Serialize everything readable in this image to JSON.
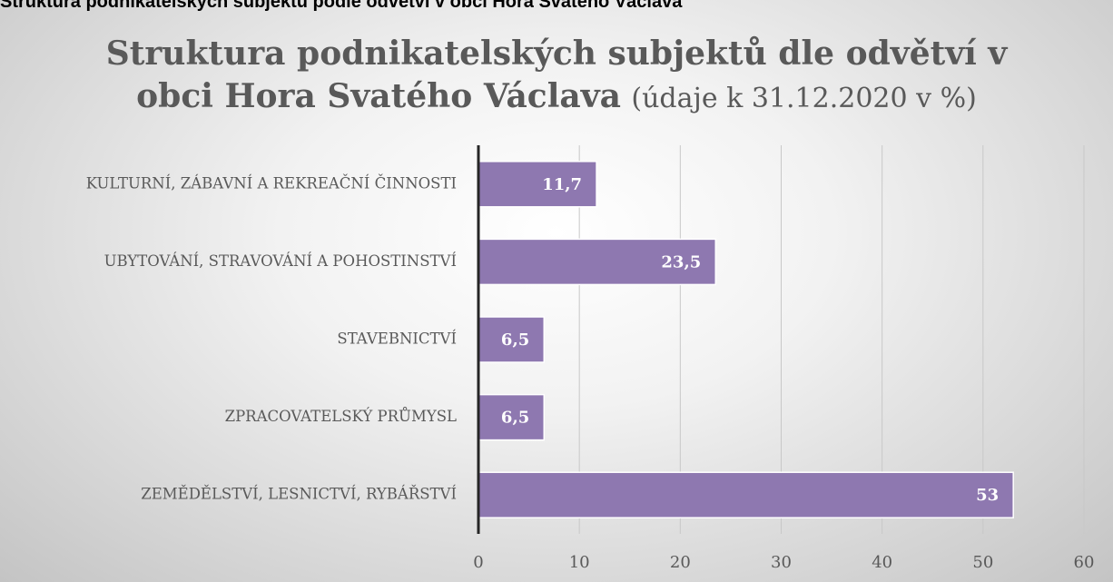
{
  "header": "Struktura podnikatelských subjektů podle odvětví v obci Hora Svatého Václava",
  "chart_data": {
    "type": "bar",
    "orientation": "horizontal",
    "title": "Struktura podnikatelských subjektů dle odvětví v obci Hora Svatého Václava",
    "subtitle": "(údaje k 31.12.2020 v %)",
    "categories": [
      "KULTURNÍ, ZÁBAVNÍ A REKREAČNÍ ČINNOSTI",
      "UBYTOVÁNÍ, STRAVOVÁNÍ A POHOSTINSTVÍ",
      "STAVEBNICTVÍ",
      "ZPRACOVATELSKÝ PRŮMYSL",
      "ZEMĚDĚLSTVÍ, LESNICTVÍ, RYBÁŘSTVÍ"
    ],
    "values": [
      11.7,
      23.5,
      6.5,
      6.5,
      53
    ],
    "value_labels": [
      "11,7",
      "23,5",
      "6,5",
      "6,5",
      "53"
    ],
    "color": "#8e78b0",
    "xlim": [
      0,
      60
    ],
    "xticks": [
      0,
      10,
      20,
      30,
      40,
      50,
      60
    ],
    "grid": true
  }
}
